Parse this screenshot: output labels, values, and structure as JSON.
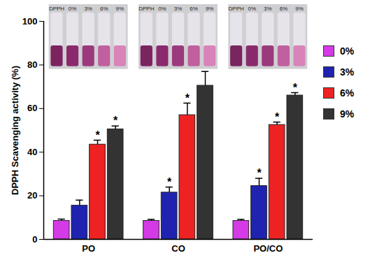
{
  "chart_data": {
    "type": "bar",
    "y_label": "DPPH Scavenging activity (%)",
    "categories": [
      "PO",
      "CO",
      "PO/CO"
    ],
    "series": [
      {
        "name": "0%",
        "color": "#d43be6",
        "values": [
          8.5,
          8.5,
          8.5
        ],
        "errors": [
          0.8,
          0.7,
          0.7
        ],
        "significance": [
          null,
          null,
          null
        ]
      },
      {
        "name": "3%",
        "color": "#1f23b0",
        "values": [
          15.5,
          21.5,
          24.5
        ],
        "errors": [
          2.5,
          2.5,
          3.5
        ],
        "significance": [
          null,
          "*",
          "*"
        ]
      },
      {
        "name": "6%",
        "color": "#ee2222",
        "values": [
          43.5,
          57,
          52.5
        ],
        "errors": [
          2,
          5.5,
          1.3
        ],
        "significance": [
          "*",
          "*",
          "*"
        ]
      },
      {
        "name": "9%",
        "color": "#333333",
        "values": [
          50.5,
          70.5,
          66
        ],
        "errors": [
          1.5,
          6.5,
          1.3
        ],
        "significance": [
          "*",
          "*",
          "*"
        ]
      }
    ],
    "ylim": [
      0,
      100
    ],
    "yticks": [
      0,
      20,
      40,
      60,
      80,
      100
    ],
    "grid": false,
    "legend": "right",
    "inset_labels": [
      [
        "DPPH",
        "0%",
        "3%",
        "6%",
        "9%"
      ],
      [
        "DPPH",
        "0%",
        "3%",
        "6%",
        "9%"
      ],
      [
        "DPPH",
        "0%",
        "3%",
        "6%",
        "9%"
      ]
    ]
  }
}
